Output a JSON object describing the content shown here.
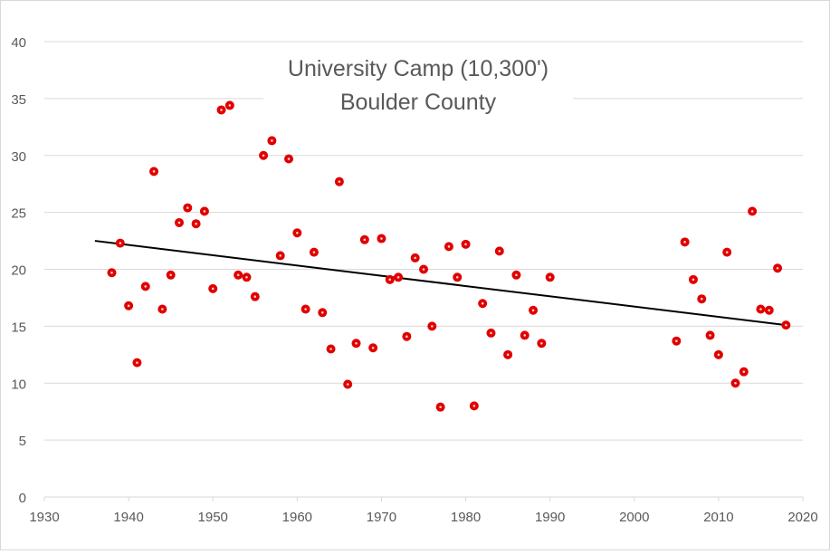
{
  "chart_data": {
    "type": "scatter",
    "title_lines": [
      "University Camp (10,300')",
      "Boulder County"
    ],
    "xlabel": "",
    "ylabel": "",
    "xlim": [
      1930,
      2020
    ],
    "ylim": [
      0,
      40
    ],
    "x_ticks": [
      1930,
      1940,
      1950,
      1960,
      1970,
      1980,
      1990,
      2000,
      2010,
      2020
    ],
    "y_ticks": [
      0,
      5,
      10,
      15,
      20,
      25,
      30,
      35,
      40
    ],
    "grid": "horizontal",
    "legend": "none",
    "colors": {
      "marker": "#e00000",
      "marker_center": "#ffcccc",
      "trendline": "#000000",
      "grid": "#d9d9d9",
      "tick_label": "#595959",
      "title": "#595959"
    },
    "series": [
      {
        "points": [
          [
            1938,
            19.7
          ],
          [
            1939,
            22.3
          ],
          [
            1940,
            16.8
          ],
          [
            1941,
            11.8
          ],
          [
            1942,
            18.5
          ],
          [
            1943,
            28.6
          ],
          [
            1944,
            16.5
          ],
          [
            1945,
            19.5
          ],
          [
            1946,
            24.1
          ],
          [
            1947,
            25.4
          ],
          [
            1948,
            24.0
          ],
          [
            1949,
            25.1
          ],
          [
            1950,
            18.3
          ],
          [
            1951,
            34.0
          ],
          [
            1952,
            34.4
          ],
          [
            1953,
            19.5
          ],
          [
            1954,
            19.3
          ],
          [
            1955,
            17.6
          ],
          [
            1956,
            30.0
          ],
          [
            1957,
            31.3
          ],
          [
            1958,
            21.2
          ],
          [
            1959,
            29.7
          ],
          [
            1960,
            23.2
          ],
          [
            1961,
            16.5
          ],
          [
            1962,
            21.5
          ],
          [
            1963,
            16.2
          ],
          [
            1964,
            13.0
          ],
          [
            1965,
            27.7
          ],
          [
            1966,
            9.9
          ],
          [
            1967,
            13.5
          ],
          [
            1968,
            22.6
          ],
          [
            1969,
            13.1
          ],
          [
            1970,
            22.7
          ],
          [
            1971,
            19.1
          ],
          [
            1972,
            19.3
          ],
          [
            1973,
            14.1
          ],
          [
            1974,
            21.0
          ],
          [
            1975,
            20.0
          ],
          [
            1976,
            15.0
          ],
          [
            1977,
            7.9
          ],
          [
            1978,
            22.0
          ],
          [
            1979,
            19.3
          ],
          [
            1980,
            22.2
          ],
          [
            1981,
            8.0
          ],
          [
            1982,
            17.0
          ],
          [
            1983,
            14.4
          ],
          [
            1984,
            21.6
          ],
          [
            1985,
            12.5
          ],
          [
            1986,
            19.5
          ],
          [
            1987,
            14.2
          ],
          [
            1988,
            16.4
          ],
          [
            1989,
            13.5
          ],
          [
            1990,
            19.3
          ],
          [
            2005,
            13.7
          ],
          [
            2006,
            22.4
          ],
          [
            2007,
            19.1
          ],
          [
            2008,
            17.4
          ],
          [
            2009,
            14.2
          ],
          [
            2010,
            12.5
          ],
          [
            2011,
            21.5
          ],
          [
            2012,
            10.0
          ],
          [
            2013,
            11.0
          ],
          [
            2014,
            25.1
          ],
          [
            2015,
            16.5
          ],
          [
            2016,
            16.4
          ],
          [
            2017,
            20.1
          ],
          [
            2018,
            15.1
          ]
        ]
      }
    ],
    "trendline": {
      "type": "linear",
      "from": [
        1936,
        22.5
      ],
      "to": [
        2018,
        15.1
      ]
    }
  }
}
